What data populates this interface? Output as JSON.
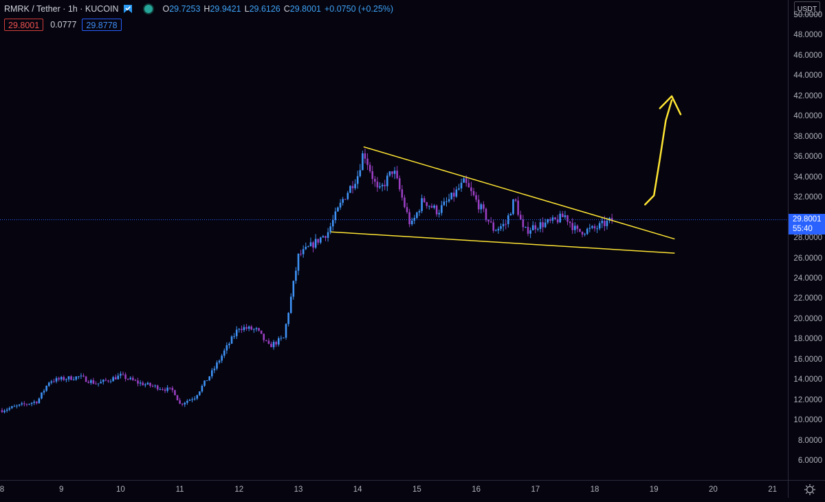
{
  "symbol": {
    "title": "RMRK / Tether · 1h · KUCOIN"
  },
  "ohlc": {
    "open_key": "O",
    "open_val": "29.7253",
    "high_key": "H",
    "high_val": "29.9421",
    "low_key": "L",
    "low_val": "29.6126",
    "close_key": "C",
    "close_val": "29.8001",
    "change_val": "+0.0750 (+0.25%)"
  },
  "trade": {
    "sell_price": "29.8001",
    "spread": "0.0777",
    "buy_price": "29.8778"
  },
  "price_axis": {
    "currency": "USDT",
    "labels": [
      "50.0000",
      "48.0000",
      "46.0000",
      "44.0000",
      "42.0000",
      "40.0000",
      "38.0000",
      "36.0000",
      "34.0000",
      "32.0000",
      "28.0000",
      "26.0000",
      "24.0000",
      "22.0000",
      "20.0000",
      "18.0000",
      "16.0000",
      "14.0000",
      "12.0000",
      "10.0000",
      "8.0000",
      "6.0000"
    ],
    "last_price": "29.8001",
    "countdown": "55:40"
  },
  "time_axis": {
    "labels": [
      "8",
      "9",
      "10",
      "11",
      "12",
      "13",
      "14",
      "15",
      "16",
      "17",
      "18",
      "19",
      "20",
      "21"
    ]
  },
  "colors": {
    "background": "#05040f",
    "up_candle": "#3f93f6",
    "down_candle": "#9b3fc2",
    "trendline": "#ffe533",
    "last_price_line": "#2962ff"
  },
  "icons": {
    "flag": "bookmark-flag-icon",
    "visibility": "eye-icon",
    "settings": "gear-icon"
  },
  "chart_data": {
    "type": "candlestick",
    "timeframe": "1h",
    "x_unit": "day of month",
    "y_unit": "USDT",
    "ylim": [
      5,
      51
    ],
    "xlim": [
      8,
      21.3
    ],
    "last_close": 29.8001,
    "anchors": [
      [
        8.0,
        11.0
      ],
      [
        8.6,
        11.9
      ],
      [
        8.8,
        13.9
      ],
      [
        9.3,
        14.3
      ],
      [
        9.6,
        13.6
      ],
      [
        10.0,
        14.4
      ],
      [
        10.3,
        13.7
      ],
      [
        10.9,
        12.9
      ],
      [
        11.0,
        11.6
      ],
      [
        11.25,
        12.3
      ],
      [
        11.55,
        14.8
      ],
      [
        11.75,
        16.8
      ],
      [
        12.0,
        19.2
      ],
      [
        12.3,
        18.9
      ],
      [
        12.5,
        17.3
      ],
      [
        12.75,
        18.1
      ],
      [
        12.85,
        21.3
      ],
      [
        13.0,
        26.2
      ],
      [
        13.25,
        27.4
      ],
      [
        13.5,
        28.6
      ],
      [
        13.75,
        31.8
      ],
      [
        14.0,
        34.2
      ],
      [
        14.1,
        36.6
      ],
      [
        14.35,
        32.4
      ],
      [
        14.6,
        34.8
      ],
      [
        14.9,
        29.1
      ],
      [
        15.1,
        31.8
      ],
      [
        15.35,
        30.6
      ],
      [
        15.6,
        32.1
      ],
      [
        15.8,
        33.5
      ],
      [
        16.05,
        31.2
      ],
      [
        16.3,
        28.8
      ],
      [
        16.5,
        29.4
      ],
      [
        16.65,
        31.9
      ],
      [
        16.8,
        28.6
      ],
      [
        17.0,
        29.2
      ],
      [
        17.3,
        29.6
      ],
      [
        17.5,
        30.2
      ],
      [
        17.7,
        28.6
      ],
      [
        18.0,
        28.9
      ],
      [
        18.2,
        29.5
      ],
      [
        18.32,
        29.8
      ]
    ],
    "annotations": {
      "upper_trendline": [
        [
          14.1,
          37.0
        ],
        [
          19.35,
          27.9
        ]
      ],
      "lower_trendline": [
        [
          13.55,
          28.6
        ],
        [
          19.35,
          26.5
        ]
      ],
      "arrow_curve": [
        [
          18.85,
          31.3
        ],
        [
          19.0,
          32.2
        ],
        [
          19.1,
          35.8
        ],
        [
          19.2,
          39.6
        ],
        [
          19.3,
          41.6
        ]
      ],
      "arrow_head": [
        [
          19.1,
          40.8
        ],
        [
          19.3,
          42.0
        ],
        [
          19.45,
          40.2
        ]
      ]
    }
  }
}
